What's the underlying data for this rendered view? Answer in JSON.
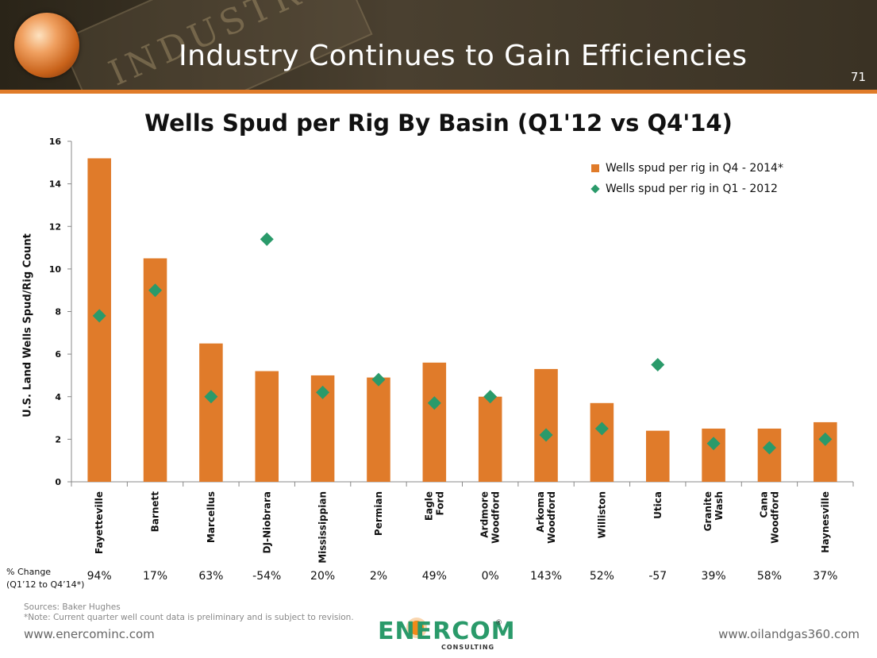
{
  "header": {
    "title": "Industry Continues to Gain Efficiencies",
    "page_number": "71",
    "stamp_text": "INDUSTRY"
  },
  "chart_data": {
    "type": "bar",
    "title": "Wells Spud per Rig By Basin (Q1'12 vs Q4'14)",
    "ylabel": "U.S. Land Wells Spud/Rig Count",
    "xlabel": "",
    "ylim": [
      0,
      16
    ],
    "yticks": [
      0,
      2,
      4,
      6,
      8,
      10,
      12,
      14,
      16
    ],
    "categories": [
      "Fayetteville",
      "Barnett",
      "Marcellus",
      "DJ-Niobrara",
      "Mississippian",
      "Permian",
      "Eagle Ford",
      "Ardmore Woodford",
      "Arkoma Woodford",
      "Williston",
      "Utica",
      "Granite Wash",
      "Cana Woodford",
      "Haynesville"
    ],
    "series": [
      {
        "name": "Wells spud per rig in Q4 - 2014*",
        "type": "bar",
        "color": "#e07b2a",
        "values": [
          15.2,
          10.5,
          6.5,
          5.2,
          5.0,
          4.9,
          5.6,
          4.0,
          5.3,
          3.7,
          2.4,
          2.5,
          2.5,
          2.8
        ]
      },
      {
        "name": "Wells spud per rig in Q1 - 2012",
        "type": "scatter",
        "marker": "diamond",
        "color": "#2a9a6a",
        "values": [
          7.8,
          9.0,
          4.0,
          11.4,
          4.2,
          4.8,
          3.7,
          4.0,
          2.2,
          2.5,
          5.5,
          1.8,
          1.6,
          2.0
        ]
      }
    ],
    "pct_change_label_line1": "% Change",
    "pct_change_label_line2": "(Q1’12 to Q4’14*)",
    "pct_change": [
      "94%",
      "17%",
      "63%",
      "-54%",
      "20%",
      "2%",
      "49%",
      "0%",
      "143%",
      "52%",
      "-57",
      "39%",
      "58%",
      "37%"
    ],
    "legend_position": "top-right",
    "grid": false
  },
  "notes": {
    "source": "Sources: Baker Hughes",
    "note": "*Note:  Current quarter well count data is preliminary and is subject to revision."
  },
  "footer": {
    "left_url": "www.enercominc.com",
    "right_url": "www.oilandgas360.com",
    "logo_text": "ENERCOM",
    "logo_sub": "CONSULTING",
    "logo_reg": "®"
  }
}
